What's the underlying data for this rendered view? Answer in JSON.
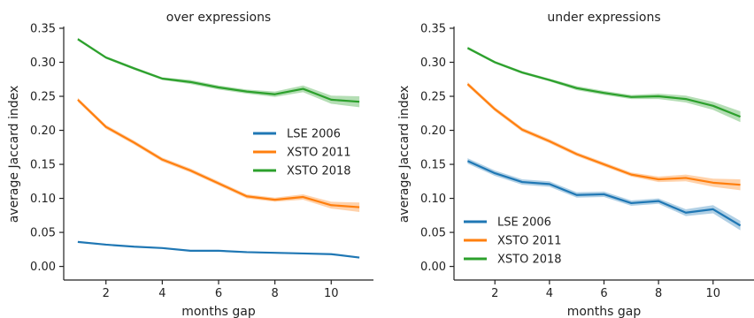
{
  "chart_data": [
    {
      "type": "line",
      "title": "over expressions",
      "xlabel": "months gap",
      "ylabel": "average Jaccard index",
      "xlim": [
        0.5,
        11.5
      ],
      "ylim": [
        -0.02,
        0.35
      ],
      "xticks": [
        2,
        4,
        6,
        8,
        10
      ],
      "xtick_labels": [
        "2",
        "4",
        "6",
        "8",
        "10"
      ],
      "yticks": [
        0.0,
        0.05,
        0.1,
        0.15,
        0.2,
        0.25,
        0.3,
        0.35
      ],
      "ytick_labels": [
        "0.00",
        "0.05",
        "0.10",
        "0.15",
        "0.20",
        "0.25",
        "0.30",
        "0.35"
      ],
      "grid": false,
      "legend_position": "center-right",
      "x": [
        1,
        2,
        3,
        4,
        5,
        6,
        7,
        8,
        9,
        10,
        11
      ],
      "series": [
        {
          "name": "LSE 2006",
          "color": "#1f77b4",
          "values": [
            0.036,
            0.032,
            0.029,
            0.027,
            0.023,
            0.023,
            0.021,
            0.02,
            0.019,
            0.018,
            0.013
          ],
          "band": [
            0.001,
            0.001,
            0.001,
            0.001,
            0.001,
            0.001,
            0.001,
            0.001,
            0.001,
            0.001,
            0.001
          ]
        },
        {
          "name": "XSTO 2011",
          "color": "#ff7f0e",
          "values": [
            0.245,
            0.205,
            0.182,
            0.157,
            0.141,
            0.122,
            0.103,
            0.098,
            0.102,
            0.09,
            0.087
          ],
          "band": [
            0.003,
            0.003,
            0.003,
            0.003,
            0.003,
            0.003,
            0.003,
            0.003,
            0.004,
            0.005,
            0.007
          ]
        },
        {
          "name": "XSTO 2018",
          "color": "#2ca02c",
          "values": [
            0.334,
            0.307,
            0.291,
            0.276,
            0.271,
            0.263,
            0.257,
            0.253,
            0.261,
            0.245,
            0.242
          ],
          "band": [
            0.002,
            0.002,
            0.002,
            0.002,
            0.003,
            0.003,
            0.003,
            0.004,
            0.005,
            0.006,
            0.008
          ]
        }
      ]
    },
    {
      "type": "line",
      "title": "under expressions",
      "xlabel": "months gap",
      "ylabel": "average Jaccard index",
      "xlim": [
        0.5,
        11.5
      ],
      "ylim": [
        -0.02,
        0.35
      ],
      "xticks": [
        2,
        4,
        6,
        8,
        10
      ],
      "xtick_labels": [
        "2",
        "4",
        "6",
        "8",
        "10"
      ],
      "yticks": [
        0.0,
        0.05,
        0.1,
        0.15,
        0.2,
        0.25,
        0.3,
        0.35
      ],
      "ytick_labels": [
        "0.00",
        "0.05",
        "0.10",
        "0.15",
        "0.20",
        "0.25",
        "0.30",
        "0.35"
      ],
      "grid": false,
      "legend_position": "bottom-left",
      "x": [
        1,
        2,
        3,
        4,
        5,
        6,
        7,
        8,
        9,
        10,
        11
      ],
      "series": [
        {
          "name": "LSE 2006",
          "color": "#1f77b4",
          "values": [
            0.155,
            0.137,
            0.124,
            0.121,
            0.105,
            0.106,
            0.093,
            0.096,
            0.079,
            0.084,
            0.06
          ],
          "band": [
            0.004,
            0.004,
            0.004,
            0.004,
            0.004,
            0.004,
            0.004,
            0.004,
            0.005,
            0.006,
            0.007
          ]
        },
        {
          "name": "XSTO 2011",
          "color": "#ff7f0e",
          "values": [
            0.268,
            0.231,
            0.201,
            0.184,
            0.165,
            0.15,
            0.135,
            0.128,
            0.13,
            0.123,
            0.12
          ],
          "band": [
            0.003,
            0.003,
            0.003,
            0.003,
            0.003,
            0.003,
            0.003,
            0.004,
            0.005,
            0.006,
            0.008
          ]
        },
        {
          "name": "XSTO 2018",
          "color": "#2ca02c",
          "values": [
            0.321,
            0.3,
            0.285,
            0.274,
            0.262,
            0.255,
            0.249,
            0.25,
            0.246,
            0.236,
            0.22
          ],
          "band": [
            0.002,
            0.002,
            0.002,
            0.002,
            0.003,
            0.003,
            0.003,
            0.004,
            0.005,
            0.006,
            0.008
          ]
        }
      ]
    }
  ]
}
